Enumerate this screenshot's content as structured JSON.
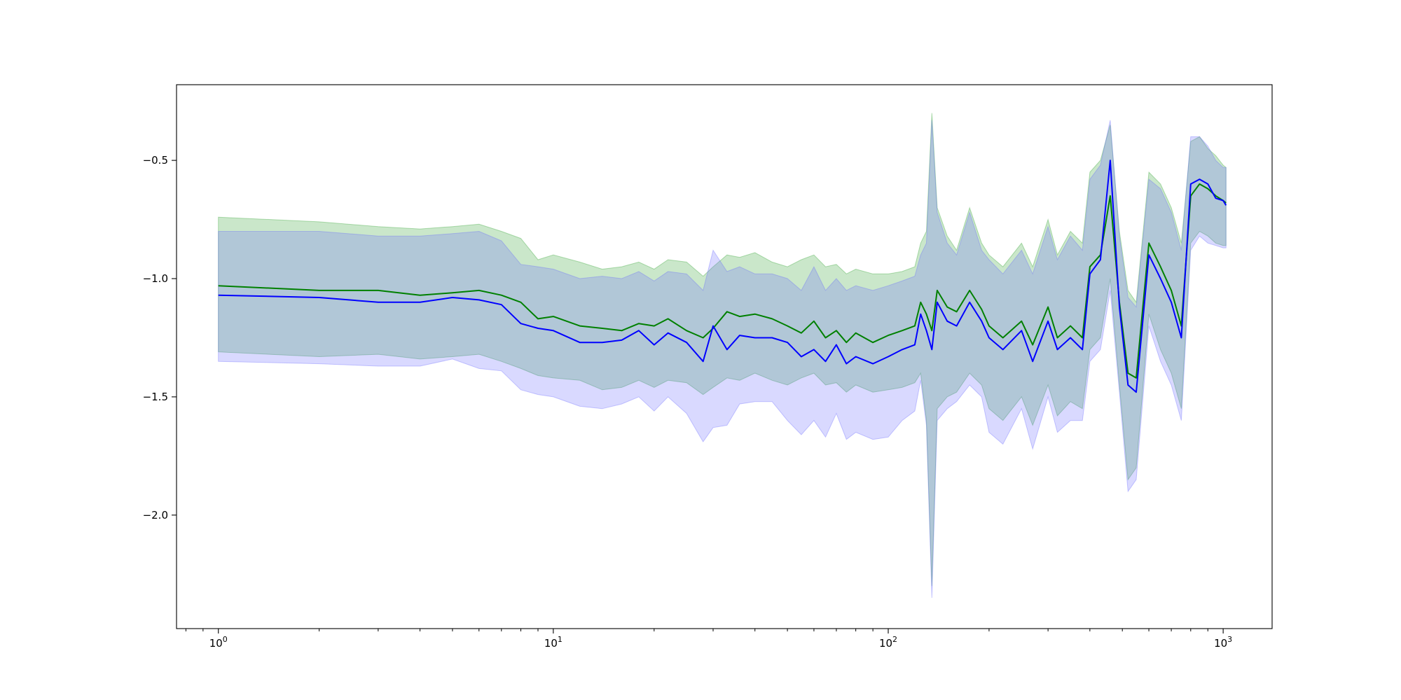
{
  "chart_data": {
    "type": "line",
    "title": "",
    "xlabel": "",
    "ylabel": "",
    "xscale": "log",
    "xlim": [
      0.75,
      1400
    ],
    "ylim": [
      -2.48,
      -0.18
    ],
    "grid": false,
    "legend": "none",
    "x_ticks": [
      {
        "value": 1,
        "base": "10",
        "exp": "0"
      },
      {
        "value": 10,
        "base": "10",
        "exp": "1"
      },
      {
        "value": 100,
        "base": "10",
        "exp": "2"
      },
      {
        "value": 1000,
        "base": "10",
        "exp": "3"
      }
    ],
    "y_ticks": [
      {
        "value": -0.5,
        "label": "−0.5"
      },
      {
        "value": -1.0,
        "label": "−1.0"
      },
      {
        "value": -1.5,
        "label": "−1.5"
      },
      {
        "value": -2.0,
        "label": "−2.0"
      }
    ],
    "series": [
      {
        "color": "#008000",
        "band_color": "#2ca02c",
        "x": [
          1,
          2,
          3,
          4,
          5,
          6,
          7,
          8,
          9,
          10,
          12,
          14,
          16,
          18,
          20,
          22,
          25,
          28,
          30,
          33,
          36,
          40,
          45,
          50,
          55,
          60,
          65,
          70,
          75,
          80,
          90,
          100,
          110,
          120,
          125,
          130,
          135,
          140,
          150,
          160,
          175,
          190,
          200,
          220,
          250,
          270,
          300,
          320,
          350,
          380,
          400,
          430,
          460,
          490,
          520,
          550,
          600,
          650,
          700,
          750,
          800,
          850,
          900,
          950,
          1000,
          1020
        ],
        "y": [
          -1.03,
          -1.05,
          -1.05,
          -1.07,
          -1.06,
          -1.05,
          -1.07,
          -1.1,
          -1.17,
          -1.16,
          -1.2,
          -1.21,
          -1.22,
          -1.19,
          -1.2,
          -1.17,
          -1.22,
          -1.25,
          -1.21,
          -1.14,
          -1.16,
          -1.15,
          -1.17,
          -1.2,
          -1.23,
          -1.18,
          -1.25,
          -1.22,
          -1.27,
          -1.23,
          -1.27,
          -1.24,
          -1.22,
          -1.2,
          -1.1,
          -1.15,
          -1.22,
          -1.05,
          -1.12,
          -1.14,
          -1.05,
          -1.13,
          -1.2,
          -1.25,
          -1.18,
          -1.28,
          -1.12,
          -1.25,
          -1.2,
          -1.25,
          -0.95,
          -0.9,
          -0.65,
          -1.1,
          -1.4,
          -1.42,
          -0.85,
          -0.95,
          -1.05,
          -1.2,
          -0.65,
          -0.6,
          -0.62,
          -0.65,
          -0.67,
          -0.68
        ],
        "upper": [
          -0.74,
          -0.76,
          -0.78,
          -0.79,
          -0.78,
          -0.77,
          -0.8,
          -0.83,
          -0.92,
          -0.9,
          -0.93,
          -0.96,
          -0.95,
          -0.93,
          -0.96,
          -0.92,
          -0.93,
          -0.99,
          -0.95,
          -0.9,
          -0.91,
          -0.89,
          -0.93,
          -0.95,
          -0.92,
          -0.9,
          -0.95,
          -0.94,
          -0.98,
          -0.96,
          -0.98,
          -0.98,
          -0.97,
          -0.95,
          -0.85,
          -0.8,
          -0.3,
          -0.7,
          -0.82,
          -0.88,
          -0.7,
          -0.85,
          -0.9,
          -0.95,
          -0.85,
          -0.95,
          -0.75,
          -0.9,
          -0.8,
          -0.85,
          -0.55,
          -0.5,
          -0.35,
          -0.8,
          -1.05,
          -1.1,
          -0.55,
          -0.6,
          -0.7,
          -0.85,
          -0.42,
          -0.4,
          -0.45,
          -0.48,
          -0.52,
          -0.53
        ],
        "lower": [
          -1.31,
          -1.33,
          -1.32,
          -1.34,
          -1.33,
          -1.32,
          -1.35,
          -1.38,
          -1.41,
          -1.42,
          -1.43,
          -1.47,
          -1.46,
          -1.43,
          -1.46,
          -1.43,
          -1.44,
          -1.49,
          -1.46,
          -1.42,
          -1.43,
          -1.4,
          -1.43,
          -1.45,
          -1.42,
          -1.4,
          -1.45,
          -1.44,
          -1.48,
          -1.45,
          -1.48,
          -1.47,
          -1.46,
          -1.44,
          -1.4,
          -1.6,
          -2.3,
          -1.55,
          -1.5,
          -1.48,
          -1.4,
          -1.45,
          -1.55,
          -1.6,
          -1.5,
          -1.62,
          -1.45,
          -1.58,
          -1.52,
          -1.55,
          -1.3,
          -1.25,
          -1.0,
          -1.45,
          -1.85,
          -1.8,
          -1.15,
          -1.3,
          -1.4,
          -1.55,
          -0.85,
          -0.8,
          -0.82,
          -0.85,
          -0.86,
          -0.86
        ]
      },
      {
        "color": "#0000ff",
        "band_color": "#6666ff",
        "x": [
          1,
          2,
          3,
          4,
          5,
          6,
          7,
          8,
          9,
          10,
          12,
          14,
          16,
          18,
          20,
          22,
          25,
          28,
          30,
          33,
          36,
          40,
          45,
          50,
          55,
          60,
          65,
          70,
          75,
          80,
          90,
          100,
          110,
          120,
          125,
          130,
          135,
          140,
          150,
          160,
          175,
          190,
          200,
          220,
          250,
          270,
          300,
          320,
          350,
          380,
          400,
          430,
          460,
          490,
          520,
          550,
          600,
          650,
          700,
          750,
          800,
          850,
          900,
          950,
          1000,
          1020
        ],
        "y": [
          -1.07,
          -1.08,
          -1.1,
          -1.1,
          -1.08,
          -1.09,
          -1.11,
          -1.19,
          -1.21,
          -1.22,
          -1.27,
          -1.27,
          -1.26,
          -1.22,
          -1.28,
          -1.23,
          -1.27,
          -1.35,
          -1.2,
          -1.3,
          -1.24,
          -1.25,
          -1.25,
          -1.27,
          -1.33,
          -1.3,
          -1.35,
          -1.28,
          -1.36,
          -1.33,
          -1.36,
          -1.33,
          -1.3,
          -1.28,
          -1.15,
          -1.22,
          -1.3,
          -1.1,
          -1.18,
          -1.2,
          -1.1,
          -1.18,
          -1.25,
          -1.3,
          -1.22,
          -1.35,
          -1.18,
          -1.3,
          -1.25,
          -1.3,
          -0.98,
          -0.92,
          -0.5,
          -1.12,
          -1.45,
          -1.48,
          -0.9,
          -1.0,
          -1.1,
          -1.25,
          -0.6,
          -0.58,
          -0.6,
          -0.66,
          -0.67,
          -0.69
        ],
        "upper": [
          -0.8,
          -0.8,
          -0.82,
          -0.82,
          -0.81,
          -0.8,
          -0.84,
          -0.94,
          -0.95,
          -0.96,
          -1.0,
          -0.99,
          -1.0,
          -0.97,
          -1.01,
          -0.97,
          -0.98,
          -1.05,
          -0.88,
          -0.97,
          -0.95,
          -0.98,
          -0.98,
          -1.0,
          -1.05,
          -0.95,
          -1.05,
          -1.0,
          -1.05,
          -1.03,
          -1.05,
          -1.03,
          -1.01,
          -0.99,
          -0.9,
          -0.85,
          -0.33,
          -0.72,
          -0.85,
          -0.9,
          -0.72,
          -0.88,
          -0.92,
          -0.98,
          -0.88,
          -0.98,
          -0.78,
          -0.92,
          -0.82,
          -0.88,
          -0.58,
          -0.52,
          -0.33,
          -0.82,
          -1.08,
          -1.12,
          -0.58,
          -0.62,
          -0.72,
          -0.88,
          -0.4,
          -0.4,
          -0.44,
          -0.5,
          -0.53,
          -0.53
        ],
        "lower": [
          -1.35,
          -1.36,
          -1.37,
          -1.37,
          -1.34,
          -1.38,
          -1.39,
          -1.47,
          -1.49,
          -1.5,
          -1.54,
          -1.55,
          -1.53,
          -1.5,
          -1.56,
          -1.5,
          -1.57,
          -1.69,
          -1.63,
          -1.62,
          -1.53,
          -1.52,
          -1.52,
          -1.6,
          -1.66,
          -1.6,
          -1.67,
          -1.57,
          -1.68,
          -1.65,
          -1.68,
          -1.67,
          -1.6,
          -1.56,
          -1.43,
          -1.62,
          -2.35,
          -1.6,
          -1.55,
          -1.52,
          -1.45,
          -1.5,
          -1.65,
          -1.7,
          -1.55,
          -1.72,
          -1.5,
          -1.65,
          -1.6,
          -1.6,
          -1.35,
          -1.3,
          -1.05,
          -1.48,
          -1.9,
          -1.85,
          -1.2,
          -1.35,
          -1.45,
          -1.6,
          -0.88,
          -0.82,
          -0.85,
          -0.86,
          -0.87,
          -0.87
        ]
      }
    ]
  }
}
